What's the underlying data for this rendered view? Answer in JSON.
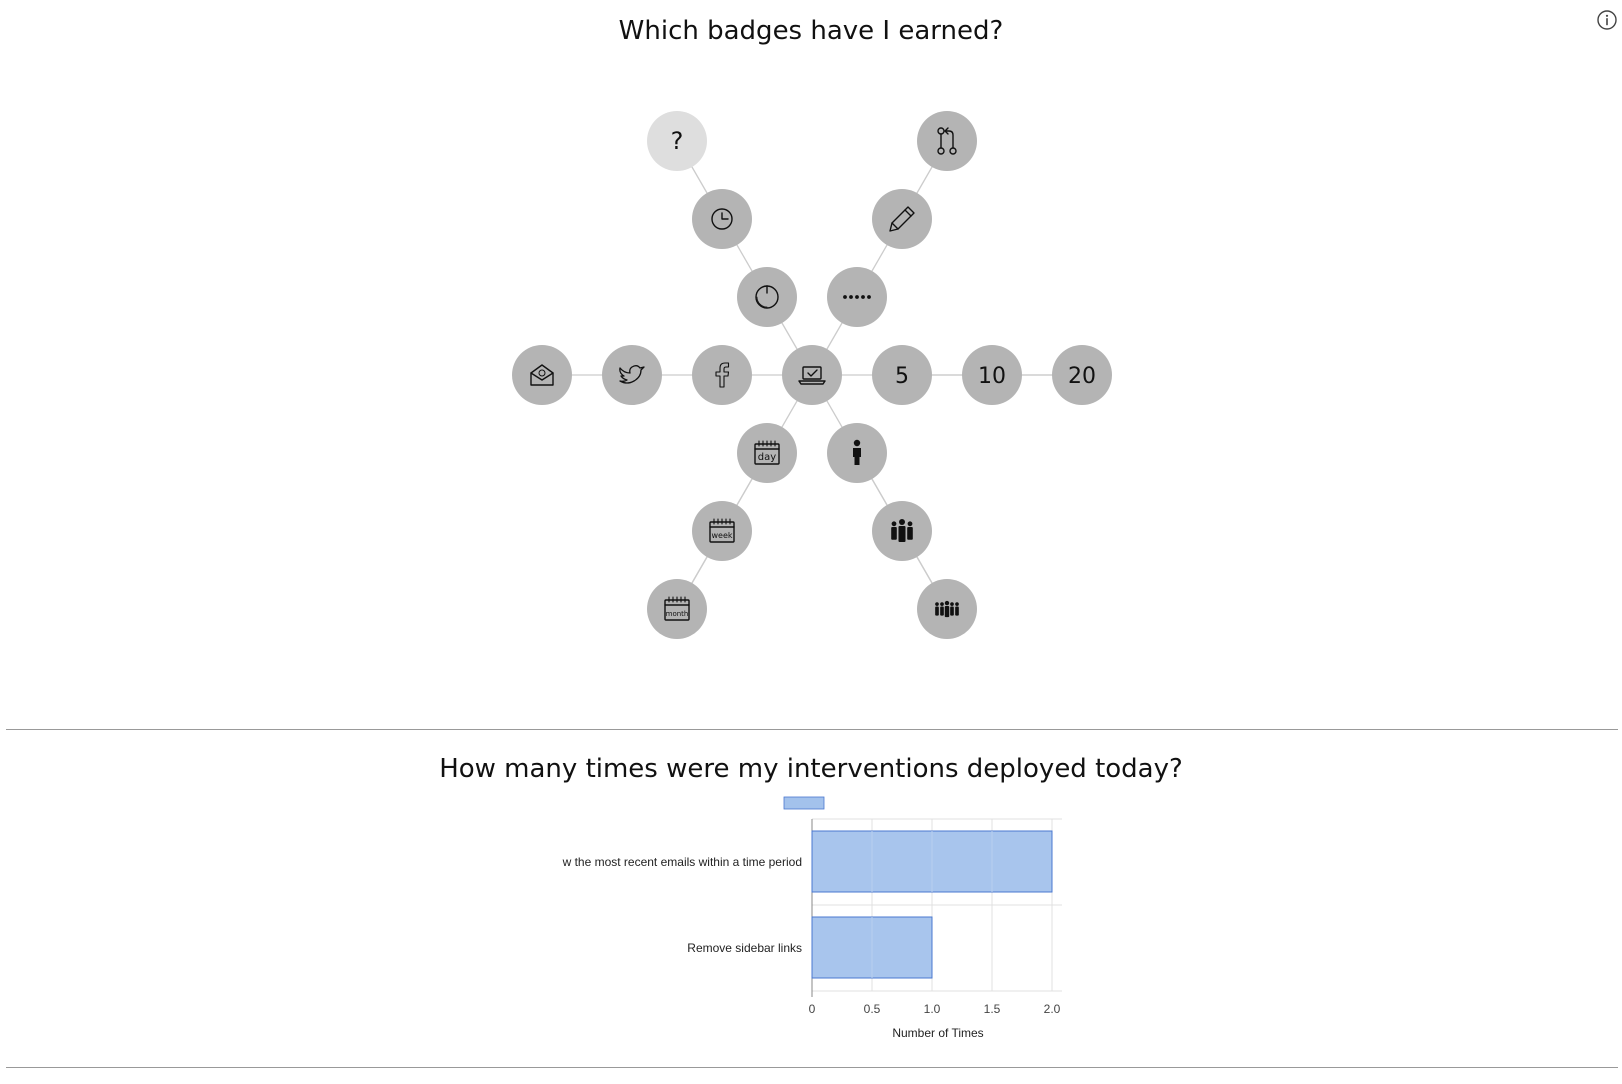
{
  "header": {
    "info_icon": "info-circle-icon"
  },
  "badges_section": {
    "title": "Which badges have I earned?",
    "center_badge": {
      "icon": "laptop-check-icon"
    },
    "badges": [
      {
        "icon": "question-mark-icon",
        "label": "?",
        "earned": false
      },
      {
        "icon": "clock-icon",
        "label": "",
        "earned": true
      },
      {
        "icon": "stopwatch-icon",
        "label": "",
        "earned": true
      },
      {
        "icon": "pull-request-icon",
        "label": "",
        "earned": true
      },
      {
        "icon": "pencil-icon",
        "label": "",
        "earned": true
      },
      {
        "icon": "password-dots-icon",
        "label": "",
        "earned": true
      },
      {
        "icon": "email-icon",
        "label": "",
        "earned": true
      },
      {
        "icon": "twitter-icon",
        "label": "",
        "earned": true
      },
      {
        "icon": "facebook-icon",
        "label": "",
        "earned": true
      },
      {
        "icon": "number-badge",
        "label": "5",
        "earned": true
      },
      {
        "icon": "number-badge",
        "label": "10",
        "earned": true
      },
      {
        "icon": "number-badge",
        "label": "20",
        "earned": true
      },
      {
        "icon": "calendar-day-icon",
        "label": "day",
        "earned": true
      },
      {
        "icon": "calendar-week-icon",
        "label": "week",
        "earned": true
      },
      {
        "icon": "calendar-month-icon",
        "label": "month",
        "earned": true
      },
      {
        "icon": "person-icon",
        "label": "",
        "earned": true
      },
      {
        "icon": "group-icon",
        "label": "",
        "earned": true
      },
      {
        "icon": "crowd-icon",
        "label": "",
        "earned": true
      }
    ]
  },
  "interventions_section": {
    "title": "How many times were my interventions deployed today?"
  },
  "chart_data": {
    "type": "bar",
    "orientation": "horizontal",
    "title": "How many times were my interventions deployed today?",
    "categories": [
      "w the most recent emails within a time period",
      "Remove sidebar links"
    ],
    "series": [
      {
        "values": [
          2,
          1
        ],
        "color": "#a3c2ec"
      }
    ],
    "xlabel": "Number of Times",
    "ylabel": "",
    "xlim": [
      0,
      2
    ],
    "x_ticks": [
      "0",
      "0.5",
      "1.0",
      "1.5",
      "2.0"
    ],
    "grid": true,
    "legend_position": "top"
  },
  "colors": {
    "badge_fill": "#b4b4b4",
    "badge_unearned_fill": "#dedede",
    "edge": "#cccccc",
    "bar_fill": "#a3c2ec",
    "bar_stroke": "#4a78d0"
  }
}
